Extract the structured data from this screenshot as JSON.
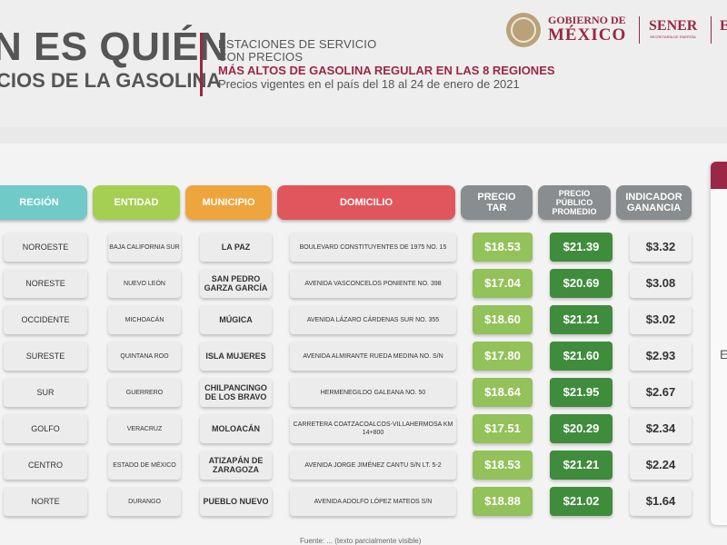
{
  "header": {
    "title_line1": "N ES QUIÉN",
    "title_line2": "CIOS DE LA GASOLINA",
    "desc_line1": "ESTACIONES DE SERVICIO",
    "desc_line2": "CON PRECIOS",
    "desc_line3": "MÁS ALTOS DE GASOLINA REGULAR EN LAS 8 REGIONES",
    "desc_line4": "Precios vigentes en el país del 18 al 24 de enero de 2021",
    "gob_line1": "GOBIERNO DE",
    "gob_line2": "MÉXICO",
    "sener": "SENER",
    "sener_sub": "SECRETARÍA DE ENERGÍA",
    "cut_letter": "E"
  },
  "colors": {
    "accent": "#9a2746",
    "region": "#6fcac8",
    "entidad": "#a5cf52",
    "municipio": "#eea53d",
    "domicilio": "#e1565c",
    "gray_head": "#8a8d8f",
    "tar": "#93c15a",
    "promedio": "#3f8c3c"
  },
  "table": {
    "headers": {
      "region": "REGIÓN",
      "entidad": "ENTIDAD",
      "municipio": "MUNICIPIO",
      "domicilio": "DOMICILIO",
      "precio_tar": "PRECIO TAR",
      "precio_promedio": "PRECIO PÚBLICO PROMEDIO",
      "indicador": "INDICADOR GANANCIA"
    },
    "rows": [
      {
        "region": "NOROESTE",
        "entidad": "BAJA CALIFORNIA SUR",
        "municipio": "LA PAZ",
        "domicilio": "BOULEVARD CONSTITUYENTES DE 1975 NO. 15",
        "tar": "$18.53",
        "promedio": "$21.39",
        "ganancia": "$3.32"
      },
      {
        "region": "NORESTE",
        "entidad": "NUEVO LEÓN",
        "municipio": "SAN PEDRO GARZA GARCÍA",
        "domicilio": "AVENIDA VASCONCELOS PONIENTE NO. 398",
        "tar": "$17.04",
        "promedio": "$20.69",
        "ganancia": "$3.08"
      },
      {
        "region": "OCCIDENTE",
        "entidad": "MICHOACÁN",
        "municipio": "MÚGICA",
        "domicilio": "AVENIDA LÁZARO CÁRDENAS SUR NO. 355",
        "tar": "$18.60",
        "promedio": "$21.21",
        "ganancia": "$3.02"
      },
      {
        "region": "SURESTE",
        "entidad": "QUINTANA ROO",
        "municipio": "ISLA MUJERES",
        "domicilio": "AVENIDA ALMIRANTE RUEDA MEDINA NO. S/N",
        "tar": "$17.80",
        "promedio": "$21.60",
        "ganancia": "$2.93"
      },
      {
        "region": "SUR",
        "entidad": "GUERRERO",
        "municipio": "CHILPANCINGO DE LOS BRAVO",
        "domicilio": "HERMENEGILDO GALEANA NO. 50",
        "tar": "$18.64",
        "promedio": "$21.95",
        "ganancia": "$2.67"
      },
      {
        "region": "GOLFO",
        "entidad": "VERACRUZ",
        "municipio": "MOLOACÁN",
        "domicilio": "CARRETERA COATZACOALCOS-VILLAHERMOSA KM 14+800",
        "tar": "$17.51",
        "promedio": "$20.29",
        "ganancia": "$2.34"
      },
      {
        "region": "CENTRO",
        "entidad": "ESTADO DE MÉXICO",
        "municipio": "ATIZAPÁN DE ZARAGOZA",
        "domicilio": "AVENIDA JORGE JIMÉNEZ CANTU S/N LT. 5-2",
        "tar": "$18.53",
        "promedio": "$21.21",
        "ganancia": "$2.24"
      },
      {
        "region": "NORTE",
        "entidad": "DURANGO",
        "municipio": "PUEBLO NUEVO",
        "domicilio": "AVENIDA ADOLFO LÓPEZ MATEOS S/N",
        "tar": "$18.88",
        "promedio": "$21.02",
        "ganancia": "$1.64"
      }
    ]
  },
  "side_panel": {
    "letter": "E"
  },
  "footer": {
    "note": "Fuente: ... (texto parcialmente visible)"
  }
}
